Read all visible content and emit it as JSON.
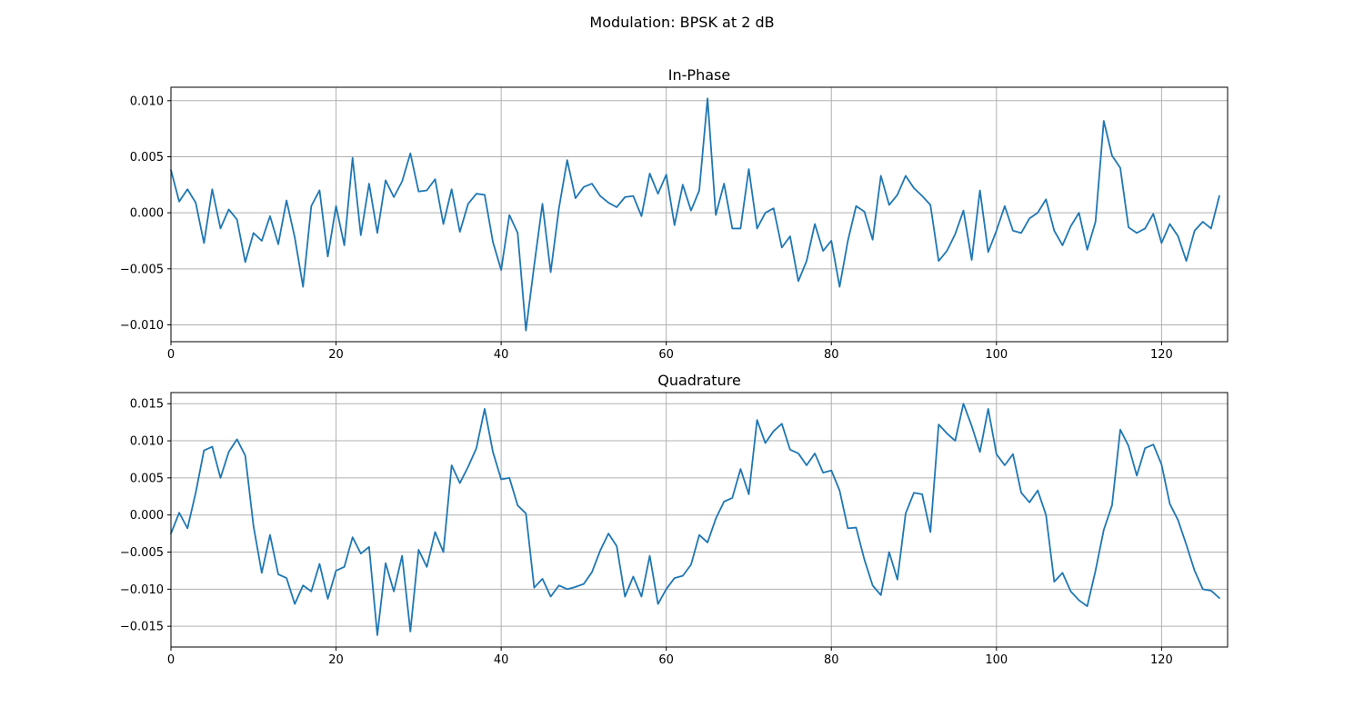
{
  "figure": {
    "title": "Modulation: BPSK at 2 dB"
  },
  "colors": {
    "series": "#1f77b4",
    "grid": "#b0b0b0",
    "axes": "#000000"
  },
  "chart_data": [
    {
      "type": "line",
      "title": "In-Phase",
      "xlabel": "",
      "ylabel": "",
      "grid": true,
      "xlim": [
        0,
        128
      ],
      "ylim": [
        -0.0115,
        0.0112
      ],
      "xticks": [
        0,
        20,
        40,
        60,
        80,
        100,
        120
      ],
      "xtick_labels": [
        "0",
        "20",
        "40",
        "60",
        "80",
        "100",
        "120"
      ],
      "yticks": [
        -0.01,
        -0.005,
        0.0,
        0.005,
        0.01
      ],
      "ytick_labels": [
        "−0.010",
        "−0.005",
        "0.000",
        "0.005",
        "0.010"
      ],
      "series": [
        {
          "values": [
            0.0038,
            0.001,
            0.0021,
            0.0009,
            -0.0027,
            0.0021,
            -0.0014,
            0.0003,
            -0.0006,
            -0.0044,
            -0.0018,
            -0.0025,
            -0.0003,
            -0.0028,
            0.0011,
            -0.0022,
            -0.0066,
            0.0006,
            0.002,
            -0.0039,
            0.0006,
            -0.0029,
            0.0049,
            -0.002,
            0.0026,
            -0.0018,
            0.0029,
            0.0014,
            0.0028,
            0.0053,
            0.0019,
            0.002,
            0.003,
            -0.001,
            0.0021,
            -0.0017,
            0.0008,
            0.0017,
            0.0016,
            -0.0026,
            -0.0051,
            -0.0002,
            -0.0018,
            -0.0105,
            -0.0047,
            0.0008,
            -0.0053,
            0.0004,
            0.0047,
            0.0013,
            0.0023,
            0.0026,
            0.0015,
            0.0009,
            0.0005,
            0.0014,
            0.0015,
            -0.0003,
            0.0035,
            0.0017,
            0.0034,
            -0.0011,
            0.0025,
            0.0002,
            0.002,
            0.0102,
            -0.0002,
            0.0026,
            -0.0014,
            -0.0014,
            0.0039,
            -0.0014,
            0.0,
            0.0004,
            -0.0031,
            -0.0021,
            -0.0061,
            -0.0043,
            -0.001,
            -0.0034,
            -0.0025,
            -0.0066,
            -0.0025,
            0.0006,
            0.0001,
            -0.0024,
            0.0033,
            0.0007,
            0.0016,
            0.0033,
            0.0022,
            0.0015,
            0.0007,
            -0.0043,
            -0.0034,
            -0.0019,
            0.0002,
            -0.0042,
            0.002,
            -0.0035,
            -0.0016,
            0.0006,
            -0.0016,
            -0.0018,
            -0.0005,
            0.0,
            0.0012,
            -0.0016,
            -0.0029,
            -0.0012,
            0.0,
            -0.0033,
            -0.0008,
            0.0082,
            0.0051,
            0.004,
            -0.0013,
            -0.0018,
            -0.0014,
            -0.0001,
            -0.0027,
            -0.001,
            -0.0021,
            -0.0043,
            -0.0016,
            -0.0008,
            -0.0014,
            0.0015
          ]
        }
      ]
    },
    {
      "type": "line",
      "title": "Quadrature",
      "xlabel": "",
      "ylabel": "",
      "grid": true,
      "xlim": [
        0,
        128
      ],
      "ylim": [
        -0.0178,
        0.0165
      ],
      "xticks": [
        0,
        20,
        40,
        60,
        80,
        100,
        120
      ],
      "xtick_labels": [
        "0",
        "20",
        "40",
        "60",
        "80",
        "100",
        "120"
      ],
      "yticks": [
        -0.015,
        -0.01,
        -0.005,
        0.0,
        0.005,
        0.01,
        0.015
      ],
      "ytick_labels": [
        "−0.015",
        "−0.010",
        "−0.005",
        "0.000",
        "0.005",
        "0.010",
        "0.015"
      ],
      "series": [
        {
          "values": [
            -0.0025,
            0.0003,
            -0.0018,
            0.003,
            0.0087,
            0.0092,
            0.005,
            0.0085,
            0.0102,
            0.008,
            -0.0015,
            -0.0078,
            -0.0027,
            -0.008,
            -0.0085,
            -0.012,
            -0.0095,
            -0.0103,
            -0.0066,
            -0.0113,
            -0.0075,
            -0.007,
            -0.003,
            -0.0052,
            -0.0043,
            -0.0162,
            -0.0065,
            -0.0103,
            -0.0055,
            -0.0157,
            -0.0047,
            -0.007,
            -0.0023,
            -0.005,
            0.0067,
            0.0043,
            0.0065,
            0.009,
            0.0143,
            0.0085,
            0.0048,
            0.005,
            0.0013,
            0.0002,
            -0.0098,
            -0.0086,
            -0.011,
            -0.0095,
            -0.01,
            -0.0097,
            -0.0093,
            -0.0077,
            -0.0048,
            -0.0025,
            -0.0042,
            -0.011,
            -0.0083,
            -0.011,
            -0.0055,
            -0.012,
            -0.01,
            -0.0085,
            -0.0082,
            -0.0067,
            -0.0027,
            -0.0037,
            -0.0005,
            0.0018,
            0.0023,
            0.0062,
            0.0028,
            0.0128,
            0.0097,
            0.0113,
            0.0123,
            0.0088,
            0.0083,
            0.0067,
            0.0083,
            0.0057,
            0.006,
            0.0033,
            -0.0018,
            -0.0017,
            -0.006,
            -0.0095,
            -0.0108,
            -0.005,
            -0.0087,
            0.0002,
            0.003,
            0.0028,
            -0.0023,
            0.0122,
            0.011,
            0.01,
            0.015,
            0.012,
            0.0085,
            0.0143,
            0.0082,
            0.0067,
            0.0082,
            0.003,
            0.0017,
            0.0033,
            0.0,
            -0.009,
            -0.0078,
            -0.0103,
            -0.0115,
            -0.0123,
            -0.0075,
            -0.002,
            0.0013,
            0.0115,
            0.0093,
            0.0053,
            0.009,
            0.0095,
            0.0068,
            0.0015,
            -0.0007,
            -0.004,
            -0.0075,
            -0.01,
            -0.0102,
            -0.0112
          ]
        }
      ]
    }
  ]
}
